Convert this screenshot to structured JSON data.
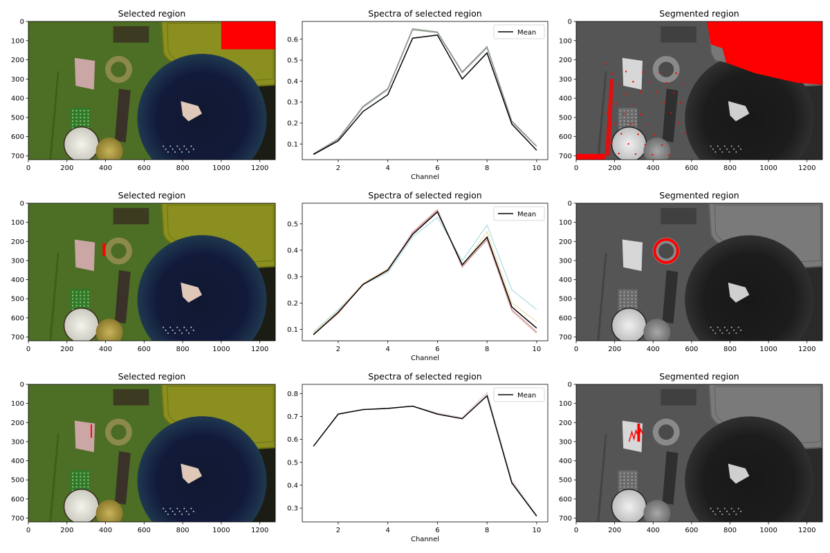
{
  "chart_data": [
    {
      "type": "image",
      "title": "Selected region",
      "xticks": [
        0,
        200,
        400,
        600,
        800,
        1000,
        1200
      ],
      "yticks": [
        0,
        100,
        200,
        300,
        400,
        500,
        600,
        700
      ],
      "xlim": [
        0,
        1280
      ],
      "ylim": [
        720,
        0
      ],
      "mode": "color",
      "selection": {
        "kind": "rect",
        "x": [
          1000,
          1280
        ],
        "y": [
          0,
          145
        ]
      }
    },
    {
      "type": "line",
      "title": "Spectra of selected region",
      "xlabel": "Channel",
      "x": [
        1,
        2,
        3,
        4,
        5,
        6,
        7,
        8,
        9,
        10
      ],
      "xticks": [
        2,
        4,
        6,
        8,
        10
      ],
      "yticks": [
        0.1,
        0.2,
        0.3,
        0.4,
        0.5,
        0.6
      ],
      "ylim": [
        0.025,
        0.685
      ],
      "legend": [
        "Mean"
      ],
      "legend_position": "top-right",
      "mean": [
        0.05,
        0.115,
        0.255,
        0.335,
        0.605,
        0.62,
        0.41,
        0.535,
        0.195,
        0.07
      ],
      "series": [
        {
          "color": "#9a9a8a",
          "values": [
            0.053,
            0.125,
            0.28,
            0.365,
            0.65,
            0.635,
            0.445,
            0.565,
            0.21,
            0.09
          ]
        },
        {
          "color": "#8a9a95",
          "values": [
            0.052,
            0.122,
            0.275,
            0.36,
            0.645,
            0.632,
            0.44,
            0.56,
            0.205,
            0.088
          ]
        }
      ]
    },
    {
      "type": "image",
      "title": "Segmented region",
      "xticks": [
        0,
        200,
        400,
        600,
        800,
        1000,
        1200
      ],
      "yticks": [
        0,
        100,
        200,
        300,
        400,
        500,
        600,
        700
      ],
      "xlim": [
        0,
        1280
      ],
      "ylim": [
        720,
        0
      ],
      "mode": "gray",
      "segment": "tray"
    },
    {
      "type": "image",
      "title": "Selected region",
      "xticks": [
        0,
        200,
        400,
        600,
        800,
        1000,
        1200
      ],
      "yticks": [
        0,
        100,
        200,
        300,
        400,
        500,
        600,
        700
      ],
      "xlim": [
        0,
        1280
      ],
      "ylim": [
        720,
        0
      ],
      "mode": "color",
      "selection": {
        "kind": "rect",
        "x": [
          385,
          400
        ],
        "y": [
          210,
          275
        ]
      }
    },
    {
      "type": "line",
      "title": "Spectra of selected region",
      "xlabel": "Channel",
      "x": [
        1,
        2,
        3,
        4,
        5,
        6,
        7,
        8,
        9,
        10
      ],
      "xticks": [
        2,
        4,
        6,
        8,
        10
      ],
      "yticks": [
        0.1,
        0.2,
        0.3,
        0.4,
        0.5
      ],
      "ylim": [
        0.057,
        0.578
      ],
      "legend": [
        "Mean"
      ],
      "legend_position": "top-right",
      "mean": [
        0.08,
        0.165,
        0.27,
        0.325,
        0.46,
        0.545,
        0.345,
        0.45,
        0.185,
        0.105
      ],
      "series": [
        {
          "color": "#b0e0e8",
          "values": [
            0.09,
            0.175,
            0.27,
            0.315,
            0.45,
            0.525,
            0.36,
            0.495,
            0.25,
            0.175
          ]
        },
        {
          "color": "#f0e0b0",
          "values": [
            0.085,
            0.17,
            0.275,
            0.33,
            0.465,
            0.55,
            0.34,
            0.47,
            0.2,
            0.13
          ]
        },
        {
          "color": "#e8c0c0",
          "values": [
            0.082,
            0.16,
            0.272,
            0.325,
            0.47,
            0.555,
            0.335,
            0.445,
            0.17,
            0.085
          ]
        },
        {
          "color": "#d09090",
          "values": [
            0.08,
            0.162,
            0.27,
            0.322,
            0.465,
            0.55,
            0.338,
            0.44,
            0.175,
            0.09
          ]
        }
      ]
    },
    {
      "type": "image",
      "title": "Segmented region",
      "xticks": [
        0,
        200,
        400,
        600,
        800,
        1000,
        1200
      ],
      "yticks": [
        0,
        100,
        200,
        300,
        400,
        500,
        600,
        700
      ],
      "xlim": [
        0,
        1280
      ],
      "ylim": [
        720,
        0
      ],
      "mode": "gray",
      "segment": "ring"
    },
    {
      "type": "image",
      "title": "Selected region",
      "xticks": [
        0,
        200,
        400,
        600,
        800,
        1000,
        1200
      ],
      "yticks": [
        0,
        100,
        200,
        300,
        400,
        500,
        600,
        700
      ],
      "xlim": [
        0,
        1280
      ],
      "ylim": [
        720,
        0
      ],
      "mode": "color",
      "selection": {
        "kind": "rect",
        "x": [
          323,
          330
        ],
        "y": [
          210,
          280
        ]
      }
    },
    {
      "type": "line",
      "title": "Spectra of selected region",
      "xlabel": "Channel",
      "x": [
        1,
        2,
        3,
        4,
        5,
        6,
        7,
        8,
        9,
        10
      ],
      "xticks": [
        2,
        4,
        6,
        8,
        10
      ],
      "yticks": [
        0.3,
        0.4,
        0.5,
        0.6,
        0.7,
        0.8
      ],
      "ylim": [
        0.24,
        0.84
      ],
      "legend": [
        "Mean"
      ],
      "legend_position": "top-right",
      "mean": [
        0.57,
        0.71,
        0.73,
        0.735,
        0.745,
        0.71,
        0.69,
        0.79,
        0.41,
        0.265
      ],
      "series": [
        {
          "color": "#e8d0d8",
          "values": [
            0.57,
            0.71,
            0.73,
            0.735,
            0.745,
            0.715,
            0.695,
            0.805,
            0.42,
            0.27
          ]
        },
        {
          "color": "#d8d0e0",
          "values": [
            0.57,
            0.712,
            0.73,
            0.737,
            0.745,
            0.712,
            0.692,
            0.795,
            0.415,
            0.268
          ]
        }
      ]
    },
    {
      "type": "image",
      "title": "Segmented region",
      "xticks": [
        0,
        200,
        400,
        600,
        800,
        1000,
        1200
      ],
      "yticks": [
        0,
        100,
        200,
        300,
        400,
        500,
        600,
        700
      ],
      "xlim": [
        0,
        1280
      ],
      "ylim": [
        720,
        0
      ],
      "mode": "gray",
      "segment": "label"
    }
  ]
}
